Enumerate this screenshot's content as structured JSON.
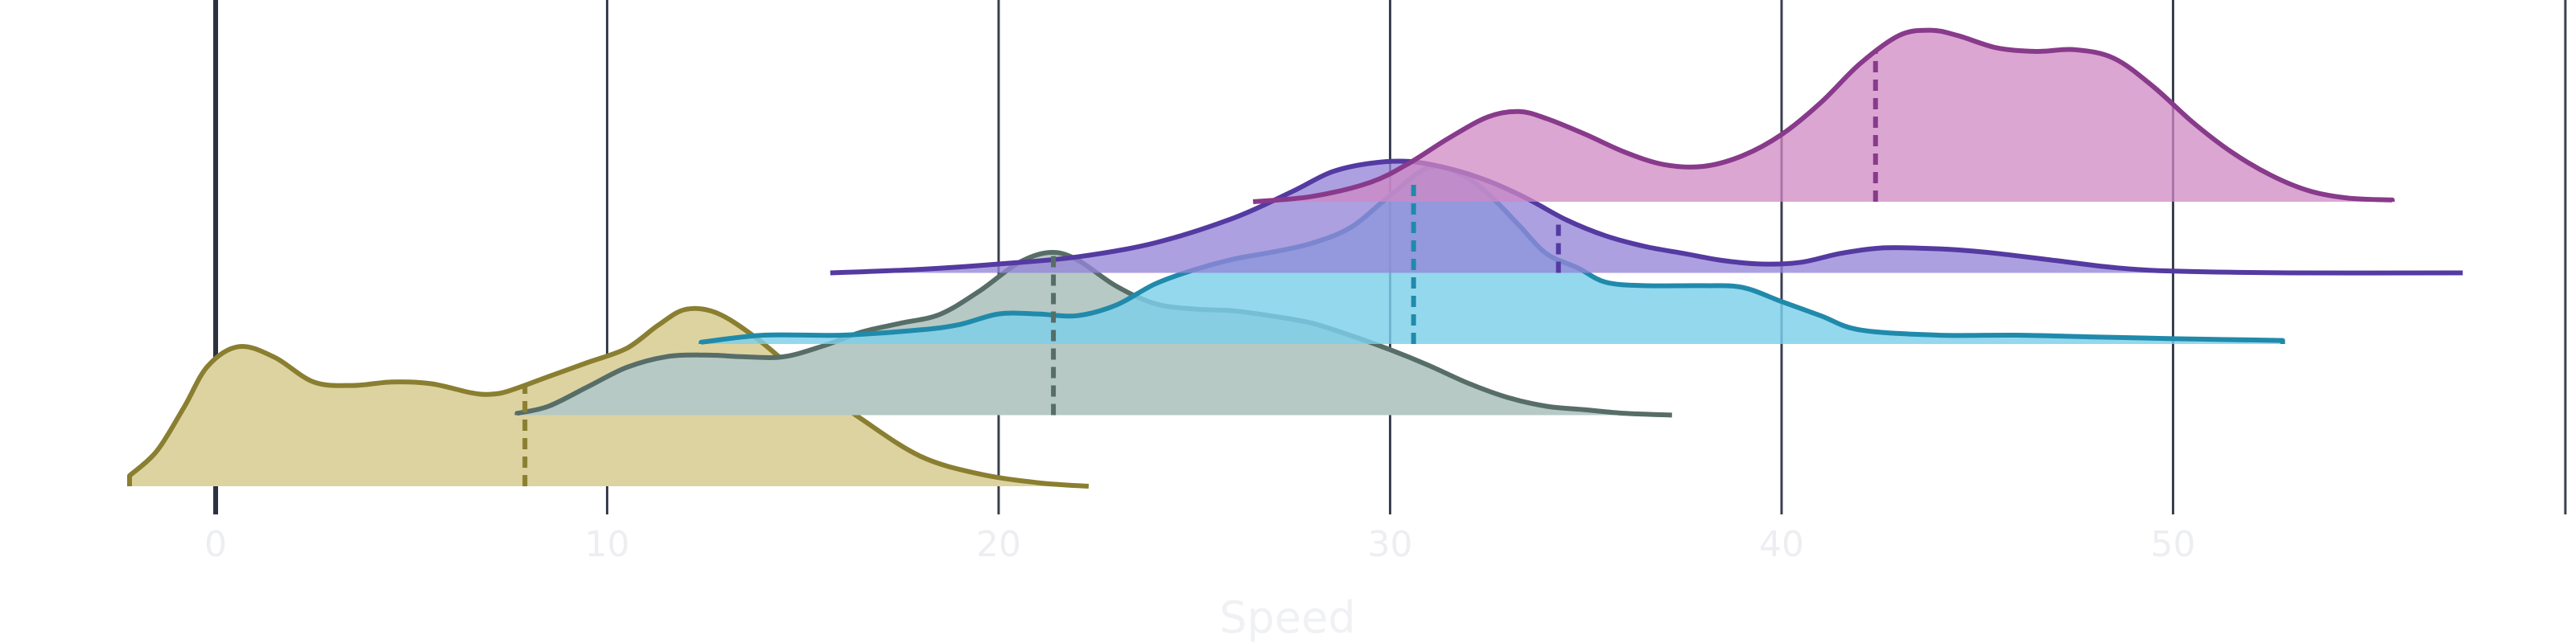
{
  "chart_data": {
    "type": "ridgeline",
    "xlabel": "Speed",
    "ylabel": "",
    "xlim": [
      -2.7,
      60
    ],
    "xticks": [
      0,
      10,
      20,
      30,
      40,
      50
    ],
    "xtick_labels": [
      "0",
      "10",
      "20",
      "30",
      "40",
      "50"
    ],
    "grid": true,
    "legend": "none",
    "series": [
      {
        "color": "#8a7e30",
        "fill": "#ddd3a1",
        "fill_opacity": 1,
        "range": [
          -2.2,
          22.3
        ],
        "median": 7.9,
        "density": [
          [
            -2.2,
            0.06
          ],
          [
            -1.5,
            0.2
          ],
          [
            -0.8,
            0.45
          ],
          [
            -0.2,
            0.68
          ],
          [
            0.6,
            0.79
          ],
          [
            1.5,
            0.73
          ],
          [
            2.5,
            0.59
          ],
          [
            3.5,
            0.57
          ],
          [
            4.5,
            0.59
          ],
          [
            5.5,
            0.58
          ],
          [
            6.5,
            0.53
          ],
          [
            7.0,
            0.52
          ],
          [
            7.5,
            0.54
          ],
          [
            8.5,
            0.62
          ],
          [
            9.5,
            0.7
          ],
          [
            10.5,
            0.78
          ],
          [
            11.3,
            0.91
          ],
          [
            12.0,
            1.0
          ],
          [
            12.8,
            0.98
          ],
          [
            13.8,
            0.84
          ],
          [
            15.0,
            0.62
          ],
          [
            16.5,
            0.38
          ],
          [
            18.0,
            0.17
          ],
          [
            19.5,
            0.07
          ],
          [
            21.0,
            0.02
          ],
          [
            22.3,
            0.0
          ]
        ]
      },
      {
        "color": "#576d68",
        "fill": "#b7c9c4",
        "fill_opacity": 1,
        "range": [
          7.7,
          37.2
        ],
        "median": 21.4,
        "density": [
          [
            7.7,
            0.01
          ],
          [
            8.5,
            0.05
          ],
          [
            9.5,
            0.16
          ],
          [
            10.5,
            0.27
          ],
          [
            11.5,
            0.33
          ],
          [
            12.5,
            0.34
          ],
          [
            13.5,
            0.33
          ],
          [
            14.5,
            0.33
          ],
          [
            15.5,
            0.39
          ],
          [
            16.5,
            0.47
          ],
          [
            17.5,
            0.52
          ],
          [
            18.5,
            0.57
          ],
          [
            19.5,
            0.7
          ],
          [
            20.5,
            0.86
          ],
          [
            21.3,
            0.92
          ],
          [
            22.0,
            0.88
          ],
          [
            23.0,
            0.73
          ],
          [
            24.0,
            0.63
          ],
          [
            25.0,
            0.6
          ],
          [
            26.0,
            0.59
          ],
          [
            27.0,
            0.56
          ],
          [
            28.0,
            0.52
          ],
          [
            29.0,
            0.45
          ],
          [
            30.0,
            0.37
          ],
          [
            31.0,
            0.28
          ],
          [
            32.0,
            0.18
          ],
          [
            33.0,
            0.1
          ],
          [
            34.0,
            0.05
          ],
          [
            35.0,
            0.03
          ],
          [
            36.0,
            0.01
          ],
          [
            37.2,
            0.0
          ]
        ]
      },
      {
        "color": "#208aab",
        "fill": "#7cd0ea",
        "fill_opacity": 0.82,
        "range": [
          12.4,
          52.8
        ],
        "median": 30.6,
        "density": [
          [
            12.4,
            0.01
          ],
          [
            14.0,
            0.05
          ],
          [
            16.0,
            0.05
          ],
          [
            18.0,
            0.08
          ],
          [
            19.0,
            0.11
          ],
          [
            20.0,
            0.17
          ],
          [
            21.0,
            0.17
          ],
          [
            22.0,
            0.16
          ],
          [
            23.0,
            0.22
          ],
          [
            24.0,
            0.34
          ],
          [
            25.0,
            0.42
          ],
          [
            26.0,
            0.48
          ],
          [
            27.0,
            0.52
          ],
          [
            28.0,
            0.57
          ],
          [
            29.0,
            0.66
          ],
          [
            30.0,
            0.84
          ],
          [
            31.0,
            1.0
          ],
          [
            31.8,
            0.96
          ],
          [
            32.5,
            0.85
          ],
          [
            33.3,
            0.67
          ],
          [
            34.0,
            0.51
          ],
          [
            34.8,
            0.43
          ],
          [
            35.5,
            0.35
          ],
          [
            36.5,
            0.33
          ],
          [
            38.0,
            0.33
          ],
          [
            39.0,
            0.32
          ],
          [
            40.0,
            0.24
          ],
          [
            41.0,
            0.16
          ],
          [
            42.0,
            0.08
          ],
          [
            44.0,
            0.05
          ],
          [
            46.0,
            0.05
          ],
          [
            48.0,
            0.04
          ],
          [
            50.0,
            0.03
          ],
          [
            52.8,
            0.02
          ]
        ]
      },
      {
        "color": "#543aa1",
        "fill": "#9585d9",
        "fill_opacity": 0.78,
        "range": [
          15.7,
          57.4
        ],
        "median": 34.3,
        "density": [
          [
            15.7,
            0.0
          ],
          [
            18.0,
            0.02
          ],
          [
            20.0,
            0.05
          ],
          [
            22.0,
            0.09
          ],
          [
            24.0,
            0.17
          ],
          [
            26.0,
            0.31
          ],
          [
            27.5,
            0.46
          ],
          [
            28.5,
            0.57
          ],
          [
            29.5,
            0.62
          ],
          [
            30.5,
            0.63
          ],
          [
            31.5,
            0.59
          ],
          [
            32.5,
            0.52
          ],
          [
            33.5,
            0.42
          ],
          [
            34.5,
            0.3
          ],
          [
            35.5,
            0.21
          ],
          [
            36.5,
            0.15
          ],
          [
            37.5,
            0.11
          ],
          [
            38.5,
            0.07
          ],
          [
            39.5,
            0.05
          ],
          [
            40.5,
            0.06
          ],
          [
            41.5,
            0.11
          ],
          [
            42.5,
            0.14
          ],
          [
            43.5,
            0.14
          ],
          [
            44.5,
            0.13
          ],
          [
            45.5,
            0.11
          ],
          [
            47.0,
            0.07
          ],
          [
            48.5,
            0.03
          ],
          [
            50.0,
            0.01
          ],
          [
            53.0,
            0.0
          ],
          [
            57.4,
            0.0
          ]
        ]
      },
      {
        "color": "#883a8b",
        "fill": "#cf88c3",
        "fill_opacity": 0.75,
        "range": [
          26.5,
          55.6
        ],
        "median": 42.4,
        "density": [
          [
            26.5,
            0.0
          ],
          [
            28.0,
            0.03
          ],
          [
            29.5,
            0.11
          ],
          [
            30.5,
            0.22
          ],
          [
            31.5,
            0.36
          ],
          [
            32.5,
            0.48
          ],
          [
            33.3,
            0.51
          ],
          [
            34.0,
            0.47
          ],
          [
            35.0,
            0.38
          ],
          [
            36.0,
            0.28
          ],
          [
            37.0,
            0.21
          ],
          [
            38.0,
            0.2
          ],
          [
            39.0,
            0.26
          ],
          [
            40.0,
            0.38
          ],
          [
            41.0,
            0.56
          ],
          [
            42.0,
            0.78
          ],
          [
            43.0,
            0.94
          ],
          [
            43.8,
            0.97
          ],
          [
            44.5,
            0.94
          ],
          [
            45.5,
            0.87
          ],
          [
            46.5,
            0.85
          ],
          [
            47.5,
            0.86
          ],
          [
            48.5,
            0.81
          ],
          [
            49.5,
            0.65
          ],
          [
            50.5,
            0.45
          ],
          [
            51.5,
            0.28
          ],
          [
            52.5,
            0.15
          ],
          [
            53.5,
            0.06
          ],
          [
            54.5,
            0.02
          ],
          [
            55.6,
            0.01
          ]
        ]
      }
    ]
  }
}
